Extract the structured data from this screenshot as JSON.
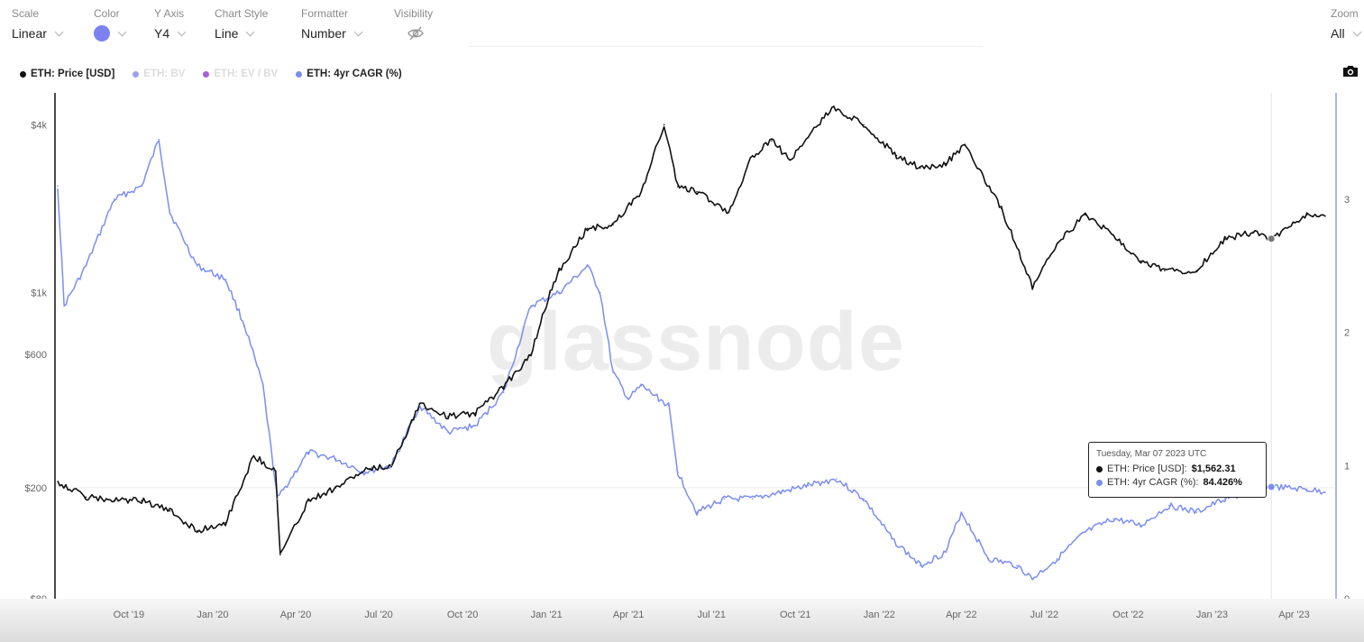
{
  "toolbar": {
    "scale": {
      "label": "Scale",
      "value": "Linear"
    },
    "color": {
      "label": "Color",
      "value_color": "#7b82ef"
    },
    "yaxis": {
      "label": "Y Axis",
      "value": "Y4"
    },
    "chartstyle": {
      "label": "Chart Style",
      "value": "Line"
    },
    "formatter": {
      "label": "Formatter",
      "value": "Number"
    },
    "visibility": {
      "label": "Visibility",
      "icon": "eye-off-icon"
    },
    "zoom": {
      "label": "Zoom",
      "value": "All"
    }
  },
  "legend": [
    {
      "label": "ETH: Price [USD]",
      "color": "#111111",
      "enabled": true
    },
    {
      "label": "ETH: BV",
      "color": "#8f96ee",
      "enabled": false
    },
    {
      "label": "ETH: EV / BV",
      "color": "#9a4fd6",
      "enabled": false
    },
    {
      "label": "ETH: 4yr CAGR (%)",
      "color": "#7b8ef0",
      "enabled": true
    }
  ],
  "watermark": "glassnode",
  "tooltip": {
    "date": "Tuesday, Mar 07 2023 UTC",
    "rows": [
      {
        "label": "ETH: Price [USD]:",
        "value": "$1,562.31",
        "color": "#111111"
      },
      {
        "label": "ETH: 4yr CAGR (%):",
        "value": "84.426%",
        "color": "#7b8ef0"
      }
    ]
  },
  "chart_data": {
    "type": "line",
    "x_ticks": [
      "Oct '19",
      "Jan '20",
      "Apr '20",
      "Jul '20",
      "Oct '20",
      "Jan '21",
      "Apr '21",
      "Jul '21",
      "Oct '21",
      "Jan '22",
      "Apr '22",
      "Jul '22",
      "Oct '22",
      "Jan '23",
      "Apr '23"
    ],
    "y_left": {
      "scale": "log",
      "ticks": [
        {
          "label": "$80",
          "value": 80
        },
        {
          "label": "$200",
          "value": 200
        },
        {
          "label": "$600",
          "value": 600
        },
        {
          "label": "$1k",
          "value": 1000
        },
        {
          "label": "$4k",
          "value": 4000
        }
      ],
      "range": [
        80,
        5200
      ]
    },
    "y_right": {
      "scale": "linear",
      "ticks": [
        "0",
        "1",
        "2",
        "3"
      ],
      "range": [
        0,
        3.8
      ]
    },
    "series": [
      {
        "name": "ETH: Price [USD]",
        "axis": "left",
        "color": "#111111",
        "x": [
          "2019-07-15",
          "2019-08-15",
          "2019-09-15",
          "2019-10-15",
          "2019-11-15",
          "2019-12-15",
          "2020-01-15",
          "2020-02-15",
          "2020-03-10",
          "2020-03-15",
          "2020-04-15",
          "2020-05-15",
          "2020-06-15",
          "2020-07-15",
          "2020-08-15",
          "2020-09-15",
          "2020-10-15",
          "2020-11-15",
          "2020-12-15",
          "2021-01-05",
          "2021-01-15",
          "2021-02-15",
          "2021-03-15",
          "2021-04-15",
          "2021-05-10",
          "2021-05-25",
          "2021-06-15",
          "2021-07-20",
          "2021-08-15",
          "2021-09-05",
          "2021-09-25",
          "2021-10-15",
          "2021-11-10",
          "2021-12-15",
          "2022-01-20",
          "2022-02-15",
          "2022-03-15",
          "2022-04-05",
          "2022-05-15",
          "2022-06-18",
          "2022-07-15",
          "2022-08-15",
          "2022-09-15",
          "2022-10-15",
          "2022-11-10",
          "2022-12-15",
          "2023-01-15",
          "2023-02-15",
          "2023-03-07",
          "2023-04-15",
          "2023-05-05"
        ],
        "y": [
          210,
          185,
          180,
          180,
          165,
          140,
          150,
          260,
          230,
          115,
          180,
          200,
          230,
          240,
          400,
          360,
          370,
          460,
          600,
          1000,
          1200,
          1700,
          1750,
          2300,
          4000,
          2400,
          2300,
          1950,
          3100,
          3500,
          3000,
          3600,
          4600,
          4000,
          3100,
          2800,
          2900,
          3400,
          2000,
          1050,
          1500,
          1900,
          1600,
          1300,
          1200,
          1200,
          1550,
          1650,
          1560,
          1900,
          1880
        ]
      },
      {
        "name": "ETH: 4yr CAGR (%)",
        "axis": "right",
        "color": "#7b8ef0",
        "x": [
          "2019-07-15",
          "2019-07-22",
          "2019-08-15",
          "2019-09-15",
          "2019-10-15",
          "2019-11-03",
          "2019-11-15",
          "2019-12-15",
          "2020-01-15",
          "2020-02-05",
          "2020-02-25",
          "2020-03-12",
          "2020-04-15",
          "2020-05-15",
          "2020-06-15",
          "2020-07-15",
          "2020-08-15",
          "2020-09-15",
          "2020-10-15",
          "2020-11-15",
          "2020-12-15",
          "2021-01-15",
          "2021-02-15",
          "2021-03-01",
          "2021-03-15",
          "2021-04-01",
          "2021-04-15",
          "2021-05-15",
          "2021-05-25",
          "2021-06-15",
          "2021-07-15",
          "2021-08-15",
          "2021-09-15",
          "2021-10-15",
          "2021-11-15",
          "2021-12-15",
          "2022-01-15",
          "2022-02-15",
          "2022-03-15",
          "2022-04-01",
          "2022-05-01",
          "2022-06-01",
          "2022-06-18",
          "2022-07-15",
          "2022-08-15",
          "2022-09-15",
          "2022-10-15",
          "2022-11-15",
          "2022-12-15",
          "2023-01-15",
          "2023-02-15",
          "2023-03-07",
          "2023-04-15",
          "2023-05-05"
        ],
        "y": [
          3.1,
          2.2,
          2.5,
          3.0,
          3.1,
          3.45,
          2.9,
          2.5,
          2.4,
          2.05,
          1.6,
          0.75,
          1.1,
          1.05,
          0.95,
          1.0,
          1.45,
          1.25,
          1.3,
          1.55,
          2.2,
          2.3,
          2.5,
          2.3,
          1.7,
          1.5,
          1.6,
          1.45,
          0.95,
          0.65,
          0.75,
          0.75,
          0.8,
          0.85,
          0.9,
          0.75,
          0.45,
          0.25,
          0.35,
          0.65,
          0.3,
          0.25,
          0.15,
          0.3,
          0.5,
          0.6,
          0.55,
          0.7,
          0.65,
          0.75,
          0.8,
          0.84,
          0.82,
          0.8
        ]
      }
    ],
    "cursor": {
      "x": "2023-03-07"
    }
  }
}
